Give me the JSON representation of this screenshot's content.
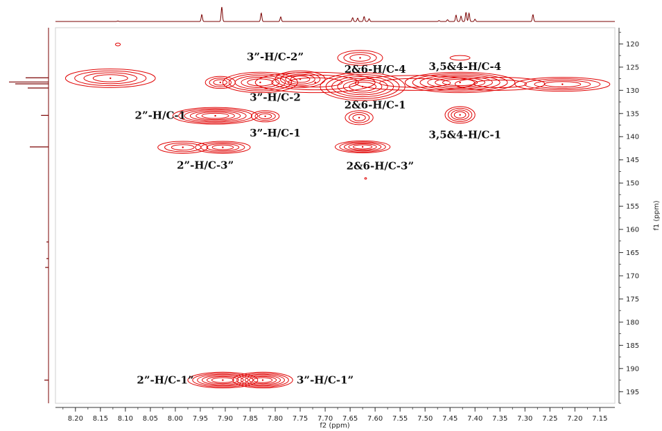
{
  "chart_data": {
    "type": "contour",
    "xlabel": "f2 (ppm)",
    "ylabel": "f1 (ppm)",
    "xlim": [
      8.24,
      7.12
    ],
    "ylim": [
      116.5,
      197.5
    ],
    "x_ticks": [
      "8.20",
      "8.15",
      "8.10",
      "8.05",
      "8.00",
      "7.95",
      "7.90",
      "7.85",
      "7.80",
      "7.75",
      "7.70",
      "7.65",
      "7.60",
      "7.55",
      "7.50",
      "7.45",
      "7.40",
      "7.35",
      "7.30",
      "7.25",
      "7.20",
      "7.15"
    ],
    "y_ticks": [
      "120",
      "125",
      "130",
      "135",
      "140",
      "145",
      "150",
      "155",
      "160",
      "165",
      "170",
      "175",
      "180",
      "185",
      "190",
      "195"
    ],
    "contour_color": "#e00000",
    "trace_color": "#7a0000",
    "cross_peaks": [
      {
        "x": 8.115,
        "y": 120.1,
        "w": 0.005,
        "h": 0.3,
        "levels": 1
      },
      {
        "x": 8.13,
        "y": 127.4,
        "w": 0.09,
        "h": 2.0,
        "levels": 4
      },
      {
        "x": 7.91,
        "y": 128.3,
        "w": 0.03,
        "h": 1.3,
        "levels": 3
      },
      {
        "x": 7.83,
        "y": 128.3,
        "w": 0.075,
        "h": 2.2,
        "levels": 5
      },
      {
        "x": 7.75,
        "y": 127.6,
        "w": 0.05,
        "h": 1.8,
        "levels": 4
      },
      {
        "x": 7.72,
        "y": 128.3,
        "w": 0.12,
        "h": 2.2,
        "levels": 3
      },
      {
        "x": 7.63,
        "y": 123.0,
        "w": 0.045,
        "h": 1.6,
        "levels": 3
      },
      {
        "x": 7.625,
        "y": 129.2,
        "w": 0.085,
        "h": 3.0,
        "levels": 6
      },
      {
        "x": 7.52,
        "y": 128.4,
        "w": 0.12,
        "h": 1.6,
        "levels": 2
      },
      {
        "x": 7.43,
        "y": 128.3,
        "w": 0.11,
        "h": 2.2,
        "levels": 6
      },
      {
        "x": 7.43,
        "y": 123.0,
        "w": 0.02,
        "h": 0.5,
        "levels": 1
      },
      {
        "x": 7.35,
        "y": 128.6,
        "w": 0.09,
        "h": 1.4,
        "levels": 2
      },
      {
        "x": 7.225,
        "y": 128.7,
        "w": 0.095,
        "h": 1.5,
        "levels": 4
      },
      {
        "x": 7.92,
        "y": 135.5,
        "w": 0.085,
        "h": 1.8,
        "levels": 6
      },
      {
        "x": 7.82,
        "y": 135.6,
        "w": 0.028,
        "h": 1.2,
        "levels": 3
      },
      {
        "x": 7.632,
        "y": 135.9,
        "w": 0.028,
        "h": 1.5,
        "levels": 3
      },
      {
        "x": 7.43,
        "y": 135.3,
        "w": 0.03,
        "h": 1.8,
        "levels": 4
      },
      {
        "x": 7.985,
        "y": 142.3,
        "w": 0.05,
        "h": 1.3,
        "levels": 3
      },
      {
        "x": 7.905,
        "y": 142.3,
        "w": 0.055,
        "h": 1.3,
        "levels": 4
      },
      {
        "x": 7.625,
        "y": 142.2,
        "w": 0.055,
        "h": 1.3,
        "levels": 5
      },
      {
        "x": 7.619,
        "y": 149.0,
        "w": 0.002,
        "h": 0.15,
        "levels": 1
      },
      {
        "x": 7.905,
        "y": 192.5,
        "w": 0.07,
        "h": 1.7,
        "levels": 6
      },
      {
        "x": 7.825,
        "y": 192.5,
        "w": 0.06,
        "h": 1.7,
        "levels": 6
      }
    ],
    "peak_labels": [
      {
        "text": "3”-H/C-2”",
        "x": 7.8,
        "y": 122.8
      },
      {
        "text": "2&6-H/C-4",
        "x": 7.6,
        "y": 125.5
      },
      {
        "text": "3,5&4-H/C-4",
        "x": 7.42,
        "y": 124.9
      },
      {
        "text": "3”-H/C-2",
        "x": 7.8,
        "y": 131.5
      },
      {
        "text": "2&6-H/C-1",
        "x": 7.6,
        "y": 133.2
      },
      {
        "text": "2”-H/C-1",
        "x": 8.03,
        "y": 135.4
      },
      {
        "text": "3”-H/C-1",
        "x": 7.8,
        "y": 139.2
      },
      {
        "text": "3,5&4-H/C-1",
        "x": 7.42,
        "y": 139.6
      },
      {
        "text": "2”-H/C-3”",
        "x": 7.94,
        "y": 146.2
      },
      {
        "text": "2&6-H/C-3”",
        "x": 7.59,
        "y": 146.3
      },
      {
        "text": "2”-H/C-1”",
        "x": 8.02,
        "y": 192.5
      },
      {
        "text": "3”-H/C-1”",
        "x": 7.7,
        "y": 192.5
      }
    ],
    "f2_projection_peaks": [
      {
        "x": 8.115,
        "h": 0.03
      },
      {
        "x": 7.947,
        "h": 0.45
      },
      {
        "x": 7.907,
        "h": 0.95
      },
      {
        "x": 7.828,
        "h": 0.55
      },
      {
        "x": 7.789,
        "h": 0.3
      },
      {
        "x": 7.645,
        "h": 0.25
      },
      {
        "x": 7.635,
        "h": 0.22
      },
      {
        "x": 7.622,
        "h": 0.32
      },
      {
        "x": 7.612,
        "h": 0.18
      },
      {
        "x": 7.472,
        "h": 0.06
      },
      {
        "x": 7.455,
        "h": 0.12
      },
      {
        "x": 7.438,
        "h": 0.42
      },
      {
        "x": 7.428,
        "h": 0.35
      },
      {
        "x": 7.418,
        "h": 0.6
      },
      {
        "x": 7.412,
        "h": 0.55
      },
      {
        "x": 7.4,
        "h": 0.15
      },
      {
        "x": 7.284,
        "h": 0.45
      }
    ],
    "f1_projection_peaks": [
      {
        "y": 127.3,
        "h": 0.55
      },
      {
        "y": 128.2,
        "h": 0.95
      },
      {
        "y": 128.6,
        "h": 0.8
      },
      {
        "y": 129.5,
        "h": 0.5
      },
      {
        "y": 135.4,
        "h": 0.18
      },
      {
        "y": 142.2,
        "h": 0.45
      },
      {
        "y": 162.7,
        "h": 0.05
      },
      {
        "y": 166.3,
        "h": 0.05
      },
      {
        "y": 168.2,
        "h": 0.08
      },
      {
        "y": 192.5,
        "h": 0.1
      }
    ]
  }
}
